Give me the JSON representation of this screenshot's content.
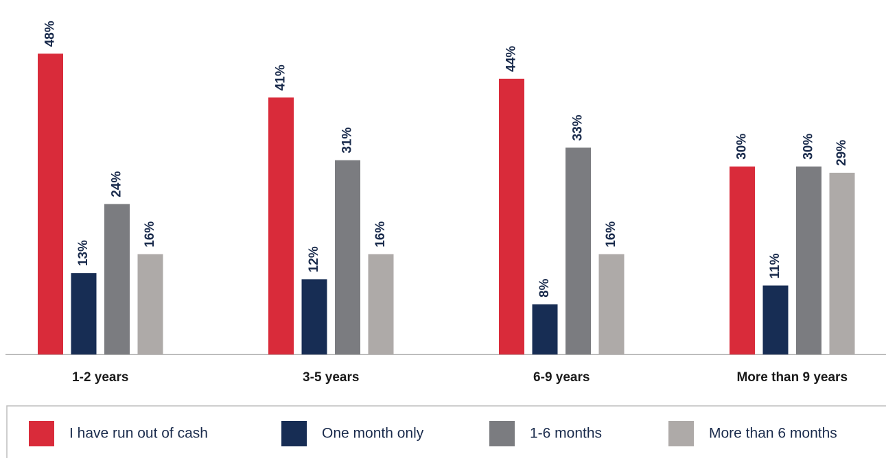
{
  "chart_data": {
    "type": "bar",
    "categories": [
      "1-2 years",
      "3-5 years",
      "6-9 years",
      "More than 9 years"
    ],
    "series": [
      {
        "name": "I have run out of cash",
        "color": "#d92b3a",
        "values": [
          48,
          41,
          44,
          30
        ],
        "value_labels": [
          "48%",
          "41%",
          "44%",
          "30%"
        ]
      },
      {
        "name": "One month only",
        "color": "#172d54",
        "values": [
          13,
          12,
          8,
          11
        ],
        "value_labels": [
          "13%",
          "12%",
          "8%",
          "11%"
        ]
      },
      {
        "name": "1-6 months",
        "color": "#7b7c80",
        "values": [
          24,
          31,
          33,
          30
        ],
        "value_labels": [
          "24%",
          "31%",
          "33%",
          "30%"
        ]
      },
      {
        "name": "More than 6 months",
        "color": "#aeaaa8",
        "values": [
          16,
          16,
          16,
          29
        ],
        "value_labels": [
          "16%",
          "16%",
          "16%",
          "29%"
        ]
      }
    ],
    "ylim": [
      0,
      50
    ],
    "legend": "bottom"
  }
}
